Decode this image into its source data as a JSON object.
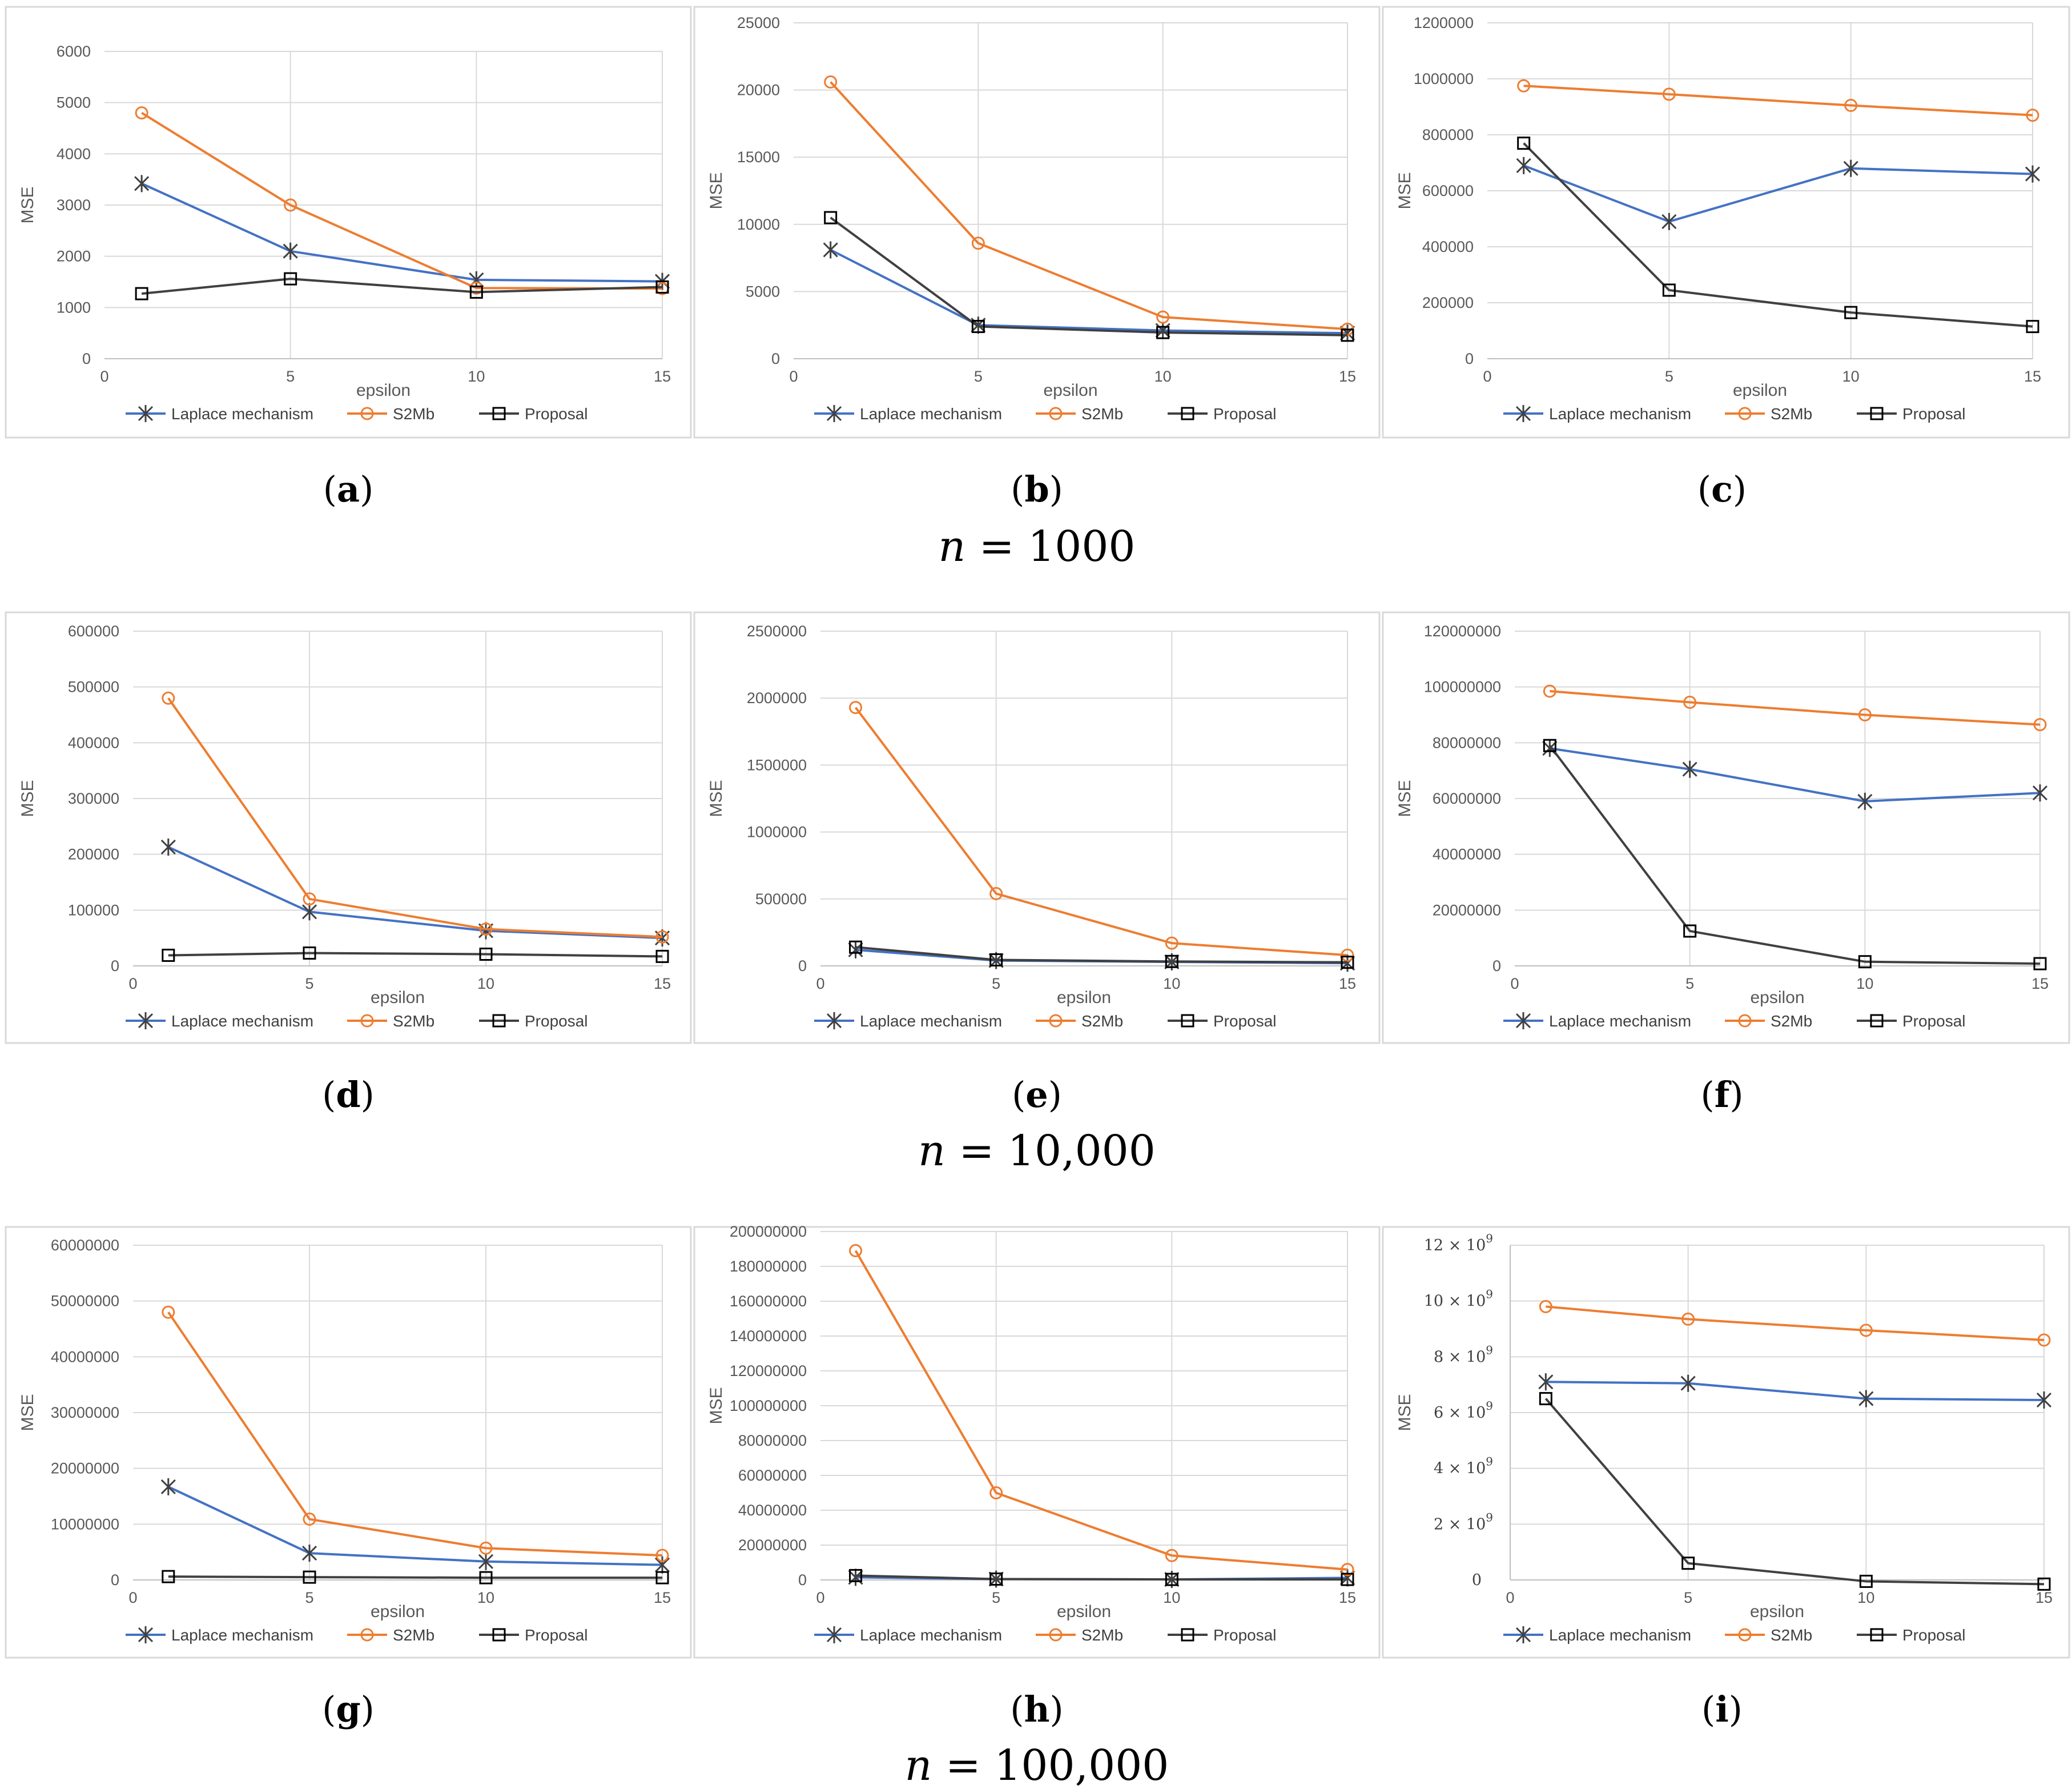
{
  "figure": {
    "row_labels": [
      "n = 1000",
      "n = 10,000",
      "n = 100,000"
    ]
  },
  "colors": {
    "laplace": "#4472C4",
    "s2mb": "#ED7D31",
    "proposal": "#404040",
    "grid": "#D9D9D9",
    "frame": "#D9D9D9"
  },
  "chart_data": [
    {
      "panel": "(a)",
      "type": "line",
      "xlabel": "epsilon",
      "ylabel": "MSE",
      "xlim": [
        0,
        15
      ],
      "xticks": [
        0,
        5,
        10,
        15
      ],
      "ylim": [
        0,
        6000
      ],
      "yticks": [
        0,
        1000,
        2000,
        3000,
        4000,
        5000,
        6000
      ],
      "ytick_labels": [
        "0",
        "1000",
        "2000",
        "3000",
        "4000",
        "5000",
        "6000"
      ],
      "x": [
        1,
        5,
        10,
        15
      ],
      "series": [
        {
          "name": "Laplace mechanism",
          "values": [
            3420,
            2100,
            1540,
            1510
          ]
        },
        {
          "name": "S2Mb",
          "values": [
            4800,
            3000,
            1380,
            1370
          ]
        },
        {
          "name": "Proposal",
          "values": [
            1270,
            1560,
            1300,
            1400
          ]
        }
      ]
    },
    {
      "panel": "(b)",
      "type": "line",
      "xlabel": "epsilon",
      "ylabel": "MSE",
      "xlim": [
        0,
        15
      ],
      "xticks": [
        0,
        5,
        10,
        15
      ],
      "ylim": [
        0,
        25000
      ],
      "yticks": [
        0,
        5000,
        10000,
        15000,
        20000,
        25000
      ],
      "ytick_labels": [
        "0",
        "5000",
        "10000",
        "15000",
        "20000",
        "25000"
      ],
      "x": [
        1,
        5,
        10,
        15
      ],
      "series": [
        {
          "name": "Laplace mechanism",
          "values": [
            8100,
            2500,
            2100,
            1900
          ]
        },
        {
          "name": "S2Mb",
          "values": [
            20600,
            8600,
            3100,
            2200
          ]
        },
        {
          "name": "Proposal",
          "values": [
            10500,
            2400,
            1950,
            1750
          ]
        }
      ]
    },
    {
      "panel": "(c)",
      "type": "line",
      "xlabel": "epsilon",
      "ylabel": "MSE",
      "xlim": [
        0,
        15
      ],
      "xticks": [
        0,
        5,
        10,
        15
      ],
      "ylim": [
        0,
        1200000
      ],
      "yticks": [
        0,
        200000,
        400000,
        600000,
        800000,
        1000000,
        1200000
      ],
      "ytick_labels": [
        "0",
        "200000",
        "400000",
        "600000",
        "800000",
        "1000000",
        "1200000"
      ],
      "x": [
        1,
        5,
        10,
        15
      ],
      "series": [
        {
          "name": "Laplace mechanism",
          "values": [
            690000,
            490000,
            680000,
            660000
          ]
        },
        {
          "name": "S2Mb",
          "values": [
            975000,
            945000,
            905000,
            870000
          ]
        },
        {
          "name": "Proposal",
          "values": [
            770000,
            245000,
            165000,
            115000
          ]
        }
      ]
    },
    {
      "panel": "(d)",
      "type": "line",
      "xlabel": "epsilon",
      "ylabel": "MSE",
      "xlim": [
        0,
        15
      ],
      "xticks": [
        0,
        5,
        10,
        15
      ],
      "ylim": [
        0,
        600000
      ],
      "yticks": [
        0,
        100000,
        200000,
        300000,
        400000,
        500000,
        600000
      ],
      "ytick_labels": [
        "0",
        "100000",
        "200000",
        "300000",
        "400000",
        "500000",
        "600000"
      ],
      "x": [
        1,
        5,
        10,
        15
      ],
      "series": [
        {
          "name": "Laplace mechanism",
          "values": [
            213000,
            97000,
            63000,
            50000
          ]
        },
        {
          "name": "S2Mb",
          "values": [
            480000,
            120000,
            66000,
            52000
          ]
        },
        {
          "name": "Proposal",
          "values": [
            19000,
            23000,
            21000,
            17000
          ]
        }
      ]
    },
    {
      "panel": "(e)",
      "type": "line",
      "xlabel": "epsilon",
      "ylabel": "MSE",
      "xlim": [
        0,
        15
      ],
      "xticks": [
        0,
        5,
        10,
        15
      ],
      "ylim": [
        0,
        2500000
      ],
      "yticks": [
        0,
        500000,
        1000000,
        1500000,
        2000000,
        2500000
      ],
      "ytick_labels": [
        "0",
        "500000",
        "1000000",
        "1500000",
        "2000000",
        "2500000"
      ],
      "x": [
        1,
        5,
        10,
        15
      ],
      "series": [
        {
          "name": "Laplace mechanism",
          "values": [
            120000,
            40000,
            30000,
            20000
          ]
        },
        {
          "name": "S2Mb",
          "values": [
            1930000,
            540000,
            170000,
            80000
          ]
        },
        {
          "name": "Proposal",
          "values": [
            140000,
            45000,
            33000,
            27000
          ]
        }
      ]
    },
    {
      "panel": "(f)",
      "type": "line",
      "xlabel": "epsilon",
      "ylabel": "MSE",
      "xlim": [
        0,
        15
      ],
      "xticks": [
        0,
        5,
        10,
        15
      ],
      "ylim": [
        0,
        120000000
      ],
      "yticks": [
        0,
        20000000,
        40000000,
        60000000,
        80000000,
        100000000,
        120000000
      ],
      "ytick_labels": [
        "0",
        "20000000",
        "40000000",
        "60000000",
        "80000000",
        "100000000",
        "120000000"
      ],
      "x": [
        1,
        5,
        10,
        15
      ],
      "series": [
        {
          "name": "Laplace mechanism",
          "values": [
            78000000,
            70500000,
            59000000,
            62000000
          ]
        },
        {
          "name": "S2Mb",
          "values": [
            98500000,
            94500000,
            90000000,
            86500000
          ]
        },
        {
          "name": "Proposal",
          "values": [
            79000000,
            12500000,
            1500000,
            800000
          ]
        }
      ]
    },
    {
      "panel": "(g)",
      "type": "line",
      "xlabel": "epsilon",
      "ylabel": "MSE",
      "xlim": [
        0,
        15
      ],
      "xticks": [
        0,
        5,
        10,
        15
      ],
      "ylim": [
        0,
        60000000
      ],
      "yticks": [
        0,
        10000000,
        20000000,
        30000000,
        40000000,
        50000000,
        60000000
      ],
      "ytick_labels": [
        "0",
        "10000000",
        "20000000",
        "30000000",
        "40000000",
        "50000000",
        "60000000"
      ],
      "x": [
        1,
        5,
        10,
        15
      ],
      "series": [
        {
          "name": "Laplace mechanism",
          "values": [
            16700000,
            4800000,
            3300000,
            2700000
          ]
        },
        {
          "name": "S2Mb",
          "values": [
            48000000,
            10900000,
            5700000,
            4400000
          ]
        },
        {
          "name": "Proposal",
          "values": [
            600000,
            500000,
            400000,
            400000
          ]
        }
      ]
    },
    {
      "panel": "(h)",
      "type": "line",
      "xlabel": "epsilon",
      "ylabel": "MSE",
      "xlim": [
        0,
        15
      ],
      "xticks": [
        0,
        5,
        10,
        15
      ],
      "ylim": [
        0,
        200000000
      ],
      "yticks": [
        0,
        20000000,
        40000000,
        60000000,
        80000000,
        100000000,
        120000000,
        140000000,
        160000000,
        180000000,
        200000000
      ],
      "ytick_labels": [
        "0",
        "20000000",
        "40000000",
        "60000000",
        "80000000",
        "100000000",
        "120000000",
        "140000000",
        "160000000",
        "180000000",
        "200000000"
      ],
      "x": [
        1,
        5,
        10,
        15
      ],
      "series": [
        {
          "name": "Laplace mechanism",
          "values": [
            1500000,
            500000,
            300000,
            1200000
          ]
        },
        {
          "name": "S2Mb",
          "values": [
            189000000,
            50000000,
            14000000,
            6000000
          ]
        },
        {
          "name": "Proposal",
          "values": [
            2500000,
            500000,
            300000,
            300000
          ]
        }
      ]
    },
    {
      "panel": "(i)",
      "type": "line",
      "xlabel": "epsilon",
      "ylabel": "MSE",
      "xlim": [
        0,
        15
      ],
      "xticks": [
        0,
        5,
        10,
        15
      ],
      "ylim": [
        0,
        12
      ],
      "yticks": [
        0,
        2,
        4,
        6,
        8,
        10,
        12
      ],
      "ytick_labels": [
        "0",
        "2 × 10",
        "4 × 10",
        "6 × 10",
        "8 × 10",
        "10 × 10",
        "12 × 10"
      ],
      "ytick_exponent": "9",
      "units": "× 10^9",
      "x": [
        1,
        5,
        10,
        15
      ],
      "series": [
        {
          "name": "Laplace mechanism",
          "values": [
            7.1,
            7.05,
            6.5,
            6.45
          ]
        },
        {
          "name": "S2Mb",
          "values": [
            9.8,
            9.35,
            8.95,
            8.6
          ]
        },
        {
          "name": "Proposal",
          "values": [
            6.5,
            0.6,
            -0.05,
            -0.15
          ]
        }
      ]
    }
  ]
}
